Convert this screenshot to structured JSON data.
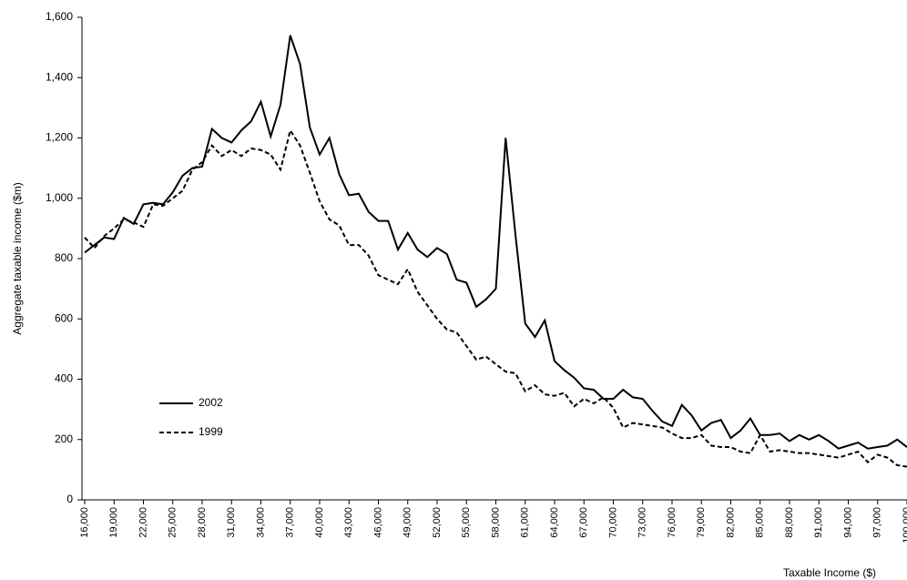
{
  "chart_data": {
    "type": "line",
    "ylabel": "Aggregate taxable income ($m)",
    "xlabel": "Taxable Income ($)",
    "x": [
      16000,
      17000,
      18000,
      19000,
      20000,
      21000,
      22000,
      23000,
      24000,
      25000,
      26000,
      27000,
      28000,
      29000,
      30000,
      31000,
      32000,
      33000,
      34000,
      35000,
      36000,
      37000,
      38000,
      39000,
      40000,
      41000,
      42000,
      43000,
      44000,
      45000,
      46000,
      47000,
      48000,
      49000,
      50000,
      51000,
      52000,
      53000,
      54000,
      55000,
      56000,
      57000,
      58000,
      59000,
      60000,
      61000,
      62000,
      63000,
      64000,
      65000,
      66000,
      67000,
      68000,
      69000,
      70000,
      71000,
      72000,
      73000,
      74000,
      75000,
      76000,
      77000,
      78000,
      79000,
      80000,
      81000,
      82000,
      83000,
      84000,
      85000,
      86000,
      87000,
      88000,
      89000,
      90000,
      91000,
      92000,
      93000,
      94000,
      95000,
      96000,
      97000,
      98000,
      99000,
      100000
    ],
    "series": [
      {
        "name": "2002",
        "color": "#000000",
        "style": "solid",
        "values": [
          820,
          845,
          870,
          865,
          935,
          915,
          980,
          985,
          980,
          1020,
          1075,
          1100,
          1105,
          1230,
          1200,
          1185,
          1225,
          1255,
          1320,
          1205,
          1310,
          1540,
          1445,
          1235,
          1145,
          1200,
          1080,
          1010,
          1015,
          955,
          925,
          925,
          830,
          885,
          830,
          805,
          835,
          815,
          730,
          720,
          640,
          665,
          700,
          1200,
          880,
          585,
          540,
          595,
          460,
          430,
          405,
          370,
          365,
          335,
          335,
          365,
          340,
          335,
          295,
          260,
          245,
          315,
          280,
          230,
          255,
          265,
          205,
          230,
          270,
          215,
          215,
          220,
          195,
          215,
          200,
          215,
          195,
          170,
          180,
          190,
          170,
          175,
          180,
          200,
          175
        ]
      },
      {
        "name": "1999",
        "color": "#000000",
        "style": "dashed",
        "values": [
          870,
          835,
          875,
          900,
          930,
          920,
          905,
          980,
          975,
          1000,
          1025,
          1095,
          1120,
          1175,
          1140,
          1160,
          1140,
          1165,
          1160,
          1145,
          1095,
          1225,
          1175,
          1085,
          990,
          930,
          910,
          845,
          845,
          810,
          745,
          730,
          715,
          765,
          690,
          645,
          600,
          565,
          555,
          510,
          465,
          475,
          450,
          425,
          420,
          360,
          380,
          350,
          345,
          355,
          310,
          335,
          320,
          340,
          305,
          240,
          255,
          250,
          245,
          240,
          220,
          205,
          205,
          215,
          180,
          175,
          175,
          160,
          155,
          215,
          160,
          165,
          160,
          155,
          155,
          150,
          145,
          140,
          150,
          160,
          125,
          150,
          140,
          115,
          110
        ]
      }
    ],
    "xlim": [
      16000,
      100000
    ],
    "xticks": [
      {
        "value": 16000,
        "label": "16,000"
      },
      {
        "value": 19000,
        "label": "19,000"
      },
      {
        "value": 22000,
        "label": "22,000"
      },
      {
        "value": 25000,
        "label": "25,000"
      },
      {
        "value": 28000,
        "label": "28,000"
      },
      {
        "value": 31000,
        "label": "31,000"
      },
      {
        "value": 34000,
        "label": "34,000"
      },
      {
        "value": 37000,
        "label": "37,000"
      },
      {
        "value": 40000,
        "label": "40,000"
      },
      {
        "value": 43000,
        "label": "43,000"
      },
      {
        "value": 46000,
        "label": "46,000"
      },
      {
        "value": 49000,
        "label": "49,000"
      },
      {
        "value": 52000,
        "label": "52,000"
      },
      {
        "value": 55000,
        "label": "55,000"
      },
      {
        "value": 58000,
        "label": "58,000"
      },
      {
        "value": 61000,
        "label": "61,000"
      },
      {
        "value": 64000,
        "label": "64,000"
      },
      {
        "value": 67000,
        "label": "67,000"
      },
      {
        "value": 70000,
        "label": "70,000"
      },
      {
        "value": 73000,
        "label": "73,000"
      },
      {
        "value": 76000,
        "label": "76,000"
      },
      {
        "value": 79000,
        "label": "79,000"
      },
      {
        "value": 82000,
        "label": "82,000"
      },
      {
        "value": 85000,
        "label": "85,000"
      },
      {
        "value": 88000,
        "label": "88,000"
      },
      {
        "value": 91000,
        "label": "91,000"
      },
      {
        "value": 94000,
        "label": "94,000"
      },
      {
        "value": 97000,
        "label": "97,000"
      },
      {
        "value": 100000,
        "label": "100,000"
      }
    ],
    "ylim": [
      0,
      1600
    ],
    "yticks": [
      0,
      200,
      400,
      600,
      800,
      {
        "value": 1000,
        "label": "1,000"
      },
      {
        "value": 1200,
        "label": "1,200"
      },
      {
        "value": 1400,
        "label": "1,400"
      },
      {
        "value": 1600,
        "label": "1,600"
      }
    ],
    "grid": false,
    "legend": "lower left"
  }
}
